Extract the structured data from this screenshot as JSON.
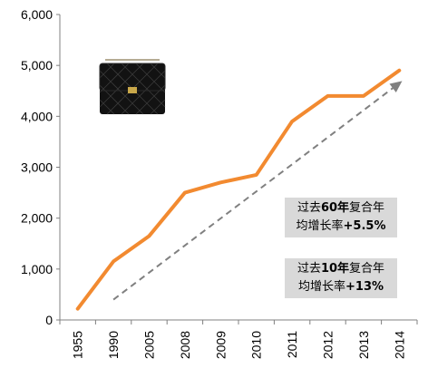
{
  "chart_data": {
    "type": "line",
    "categories": [
      "1955",
      "1990",
      "2005",
      "2008",
      "2009",
      "2010",
      "2011",
      "2012",
      "2013",
      "2014"
    ],
    "series": [
      {
        "values": [
          220,
          1150,
          1650,
          2500,
          2700,
          2850,
          3900,
          4400,
          4400,
          4900
        ],
        "color": "#f28a30",
        "style": "solid"
      },
      {
        "values": [
          null,
          400,
          null,
          null,
          null,
          null,
          null,
          null,
          null,
          4650
        ],
        "color": "#808080",
        "style": "dashed-arrow"
      }
    ],
    "ylim": [
      0,
      6000
    ],
    "yticks": [
      "0",
      "1,000",
      "2,000",
      "3,000",
      "4,000",
      "5,000",
      "6,000"
    ],
    "grid": false,
    "annotations": [
      {
        "line1_a": "过去",
        "line1_b": "60年",
        "line1_c": "复合年",
        "line2_a": "均增长率",
        "line2_b": "+5.5%"
      },
      {
        "line1_a": "过去",
        "line1_b": "10年",
        "line1_c": "复合年",
        "line2_a": "均增长率",
        "line2_b": "+13%"
      }
    ]
  },
  "image": {
    "icon": "handbag-icon"
  }
}
